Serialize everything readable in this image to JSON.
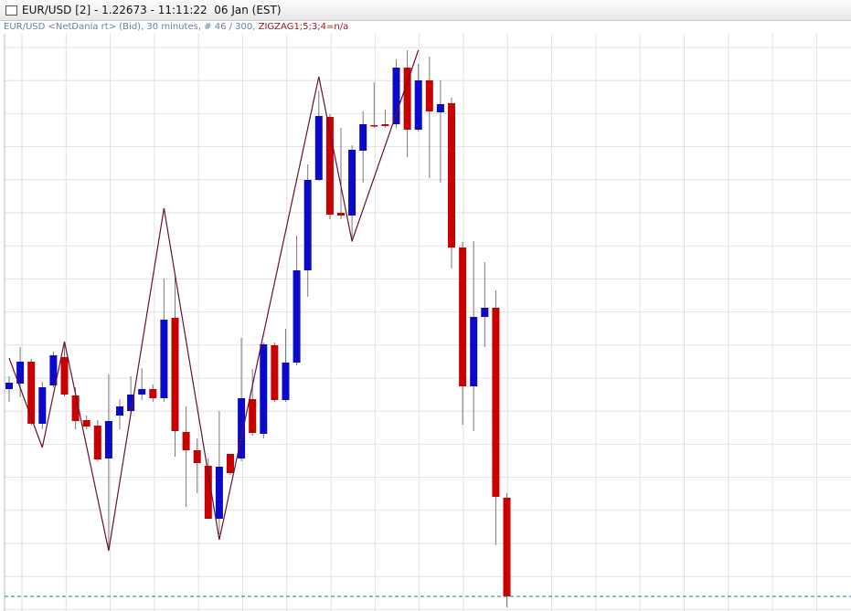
{
  "chart_data": {
    "type": "candlestick",
    "title": "EUR/USD [2] - 1.22673 - 11:11:22  06 Jan (EST)",
    "subtitle": "EUR/USD <NetDania rt> (Bid), 30 minutes, # 46 / 300,",
    "indicator": "ZIGZAG1;5;3;4=n/a",
    "last_price": 1.22673,
    "ylim": [
      1.22657,
      1.23289
    ],
    "grid": true,
    "up_color": "#0a0ac8",
    "down_color": "#c80000",
    "zigzag_color": "#6a1030",
    "open": [
      1.229,
      1.22906,
      1.2293,
      1.22862,
      1.22904,
      1.22935,
      1.22893,
      1.22866,
      1.2286,
      1.22824,
      1.22871,
      1.22876,
      1.22894,
      1.229,
      1.2289,
      1.22978,
      1.22853,
      1.22833,
      1.22816,
      1.22758,
      1.22829,
      1.22824,
      1.22889,
      1.22851,
      1.22948,
      1.22888,
      1.22929,
      1.2303,
      1.23129,
      1.23198,
      1.23093,
      1.2309,
      1.23161,
      1.23189,
      1.2319,
      1.2319,
      1.23252,
      1.23184,
      1.23238,
      1.23203,
      1.23213,
      1.23055,
      1.22903,
      1.22979,
      1.22989,
      1.22781
    ],
    "high": [
      1.22914,
      1.22946,
      1.22933,
      1.22908,
      1.22941,
      1.22951,
      1.22902,
      1.22871,
      1.22866,
      1.22916,
      1.22889,
      1.22914,
      1.22923,
      1.22905,
      1.23021,
      1.23026,
      1.22881,
      1.22846,
      1.22824,
      1.22876,
      1.22829,
      1.22956,
      1.22922,
      1.22951,
      1.22951,
      1.22966,
      1.23068,
      1.23146,
      1.23227,
      1.23201,
      1.23186,
      1.23167,
      1.23204,
      1.23236,
      1.23206,
      1.23261,
      1.23271,
      1.23256,
      1.23264,
      1.23238,
      1.23219,
      1.23061,
      1.23062,
      1.23039,
      1.23008,
      1.22786
    ],
    "low": [
      1.22886,
      1.22891,
      1.2286,
      1.22856,
      1.22902,
      1.22892,
      1.22856,
      1.22856,
      1.22821,
      1.22723,
      1.22856,
      1.22871,
      1.22888,
      1.22886,
      1.22886,
      1.22826,
      1.22771,
      1.22786,
      1.22758,
      1.22741,
      1.22806,
      1.22821,
      1.22849,
      1.22846,
      1.22886,
      1.22886,
      1.22926,
      1.23001,
      1.23128,
      1.23086,
      1.23086,
      1.23061,
      1.23126,
      1.23186,
      1.23186,
      1.23186,
      1.23154,
      1.23182,
      1.23131,
      1.23126,
      1.23032,
      1.22861,
      1.22854,
      1.22946,
      1.22729,
      1.22661
    ],
    "close": [
      1.22907,
      1.2293,
      1.22862,
      1.22902,
      1.22937,
      1.22894,
      1.22865,
      1.22859,
      1.22823,
      1.22865,
      1.22881,
      1.22894,
      1.229,
      1.2289,
      1.22976,
      1.22854,
      1.22833,
      1.22819,
      1.22758,
      1.22815,
      1.22808,
      1.2289,
      1.22852,
      1.22949,
      1.22888,
      1.22929,
      1.2303,
      1.23129,
      1.23199,
      1.23091,
      1.2309,
      1.23162,
      1.2319,
      1.23188,
      1.23188,
      1.23252,
      1.23184,
      1.23238,
      1.23204,
      1.23212,
      1.23055,
      1.22903,
      1.22979,
      1.22989,
      1.22782,
      1.22673
    ],
    "zigzag": [
      1.22934,
      null,
      null,
      1.22836,
      null,
      1.22952,
      null,
      null,
      null,
      1.22723,
      null,
      null,
      null,
      null,
      1.23098,
      null,
      null,
      null,
      null,
      1.22735,
      null,
      null,
      null,
      null,
      null,
      null,
      null,
      null,
      1.23242,
      null,
      null,
      1.23062,
      null,
      null,
      null,
      null,
      null,
      1.23271,
      null,
      null,
      null,
      null,
      null,
      null,
      null,
      null
    ]
  }
}
